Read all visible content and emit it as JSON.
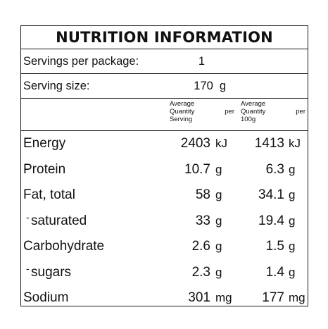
{
  "panel": {
    "title": "NUTRITION INFORMATION",
    "servings_label": "Servings per package:",
    "servings_value": "1",
    "size_label": "Serving size:",
    "size_value": "170",
    "size_unit": "g",
    "col_serving": {
      "line1": "Average",
      "line2a": "Quantity",
      "line2b": "per",
      "line3": "Serving"
    },
    "col_100g": {
      "line1": "Average",
      "line2a": "Quantity",
      "line2b": "per",
      "line3": "100g"
    },
    "rows": [
      {
        "label": "Energy",
        "sub": false,
        "serving": "2403",
        "serving_unit": "kJ",
        "per100": "1413",
        "per100_unit": "kJ"
      },
      {
        "label": "Protein",
        "sub": false,
        "serving": "10.7",
        "serving_unit": "g",
        "per100": "6.3",
        "per100_unit": "g"
      },
      {
        "label": "Fat, total",
        "sub": false,
        "serving": "58",
        "serving_unit": "g",
        "per100": "34.1",
        "per100_unit": "g"
      },
      {
        "label": "saturated",
        "sub": true,
        "serving": "33",
        "serving_unit": "g",
        "per100": "19.4",
        "per100_unit": "g"
      },
      {
        "label": "Carbohydrate",
        "sub": false,
        "serving": "2.6",
        "serving_unit": "g",
        "per100": "1.5",
        "per100_unit": "g"
      },
      {
        "label": "sugars",
        "sub": true,
        "serving": "2.3",
        "serving_unit": "g",
        "per100": "1.4",
        "per100_unit": "g"
      },
      {
        "label": "Sodium",
        "sub": false,
        "serving": "301",
        "serving_unit": "mg",
        "per100": "177",
        "per100_unit": "mg"
      }
    ]
  }
}
